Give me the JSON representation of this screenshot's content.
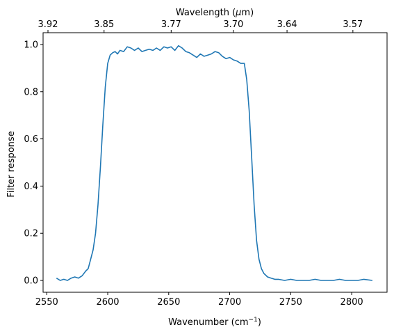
{
  "chart_data": {
    "type": "line",
    "title": "",
    "xlabel": "Wavenumber (cm",
    "xlabel_sup": "−1",
    "xlabel_close": ")",
    "ylabel": "Filter response",
    "top_xlabel": "Wavelength (",
    "top_xlabel_mu": "μ",
    "top_xlabel_end": "m)",
    "xlim": [
      2547,
      2829
    ],
    "ylim": [
      -0.05,
      1.05
    ],
    "x_ticks": [
      2550,
      2600,
      2650,
      2700,
      2750,
      2800
    ],
    "x_tick_labels": [
      "2550",
      "2600",
      "2650",
      "2700",
      "2750",
      "2800"
    ],
    "y_ticks": [
      0.0,
      0.2,
      0.4,
      0.6,
      0.8,
      1.0
    ],
    "y_tick_labels": [
      "0.0",
      "0.2",
      "0.4",
      "0.6",
      "0.8",
      "1.0"
    ],
    "top_ticks_wavenumber": [
      2551,
      2597,
      2652,
      2703,
      2747,
      2801
    ],
    "top_tick_labels": [
      "3.92",
      "3.85",
      "3.77",
      "3.70",
      "3.64",
      "3.57"
    ],
    "grid": false,
    "line_color": "#1f77b4",
    "series": [
      {
        "x": [
          2558,
          2561,
          2564,
          2567,
          2570,
          2573,
          2576,
          2579,
          2582,
          2584,
          2586,
          2588,
          2590,
          2592,
          2594,
          2596,
          2598,
          2600,
          2602,
          2604,
          2606,
          2608,
          2610,
          2613,
          2616,
          2619,
          2622,
          2625,
          2628,
          2631,
          2634,
          2637,
          2640,
          2643,
          2646,
          2649,
          2652,
          2655,
          2658,
          2661,
          2664,
          2667,
          2670,
          2673,
          2676,
          2679,
          2682,
          2685,
          2688,
          2691,
          2694,
          2697,
          2700,
          2703,
          2706,
          2709,
          2712,
          2714,
          2716,
          2718,
          2720,
          2722,
          2724,
          2726,
          2728,
          2731,
          2734,
          2737,
          2740,
          2745,
          2750,
          2755,
          2760,
          2765,
          2770,
          2775,
          2780,
          2785,
          2790,
          2795,
          2800,
          2805,
          2810,
          2817
        ],
        "y": [
          0.01,
          0.0,
          0.005,
          0.0,
          0.01,
          0.015,
          0.01,
          0.02,
          0.04,
          0.05,
          0.09,
          0.13,
          0.2,
          0.32,
          0.48,
          0.66,
          0.82,
          0.92,
          0.955,
          0.965,
          0.97,
          0.96,
          0.975,
          0.97,
          0.99,
          0.985,
          0.975,
          0.985,
          0.97,
          0.975,
          0.98,
          0.975,
          0.985,
          0.975,
          0.99,
          0.985,
          0.99,
          0.975,
          0.995,
          0.985,
          0.97,
          0.965,
          0.955,
          0.945,
          0.96,
          0.95,
          0.955,
          0.96,
          0.97,
          0.965,
          0.95,
          0.94,
          0.945,
          0.935,
          0.93,
          0.92,
          0.92,
          0.85,
          0.72,
          0.52,
          0.32,
          0.17,
          0.09,
          0.05,
          0.03,
          0.015,
          0.01,
          0.005,
          0.005,
          0.0,
          0.005,
          0.0,
          0.0,
          0.0,
          0.005,
          0.0,
          0.0,
          0.0,
          0.005,
          0.0,
          0.0,
          0.0,
          0.005,
          0.0
        ]
      }
    ]
  }
}
